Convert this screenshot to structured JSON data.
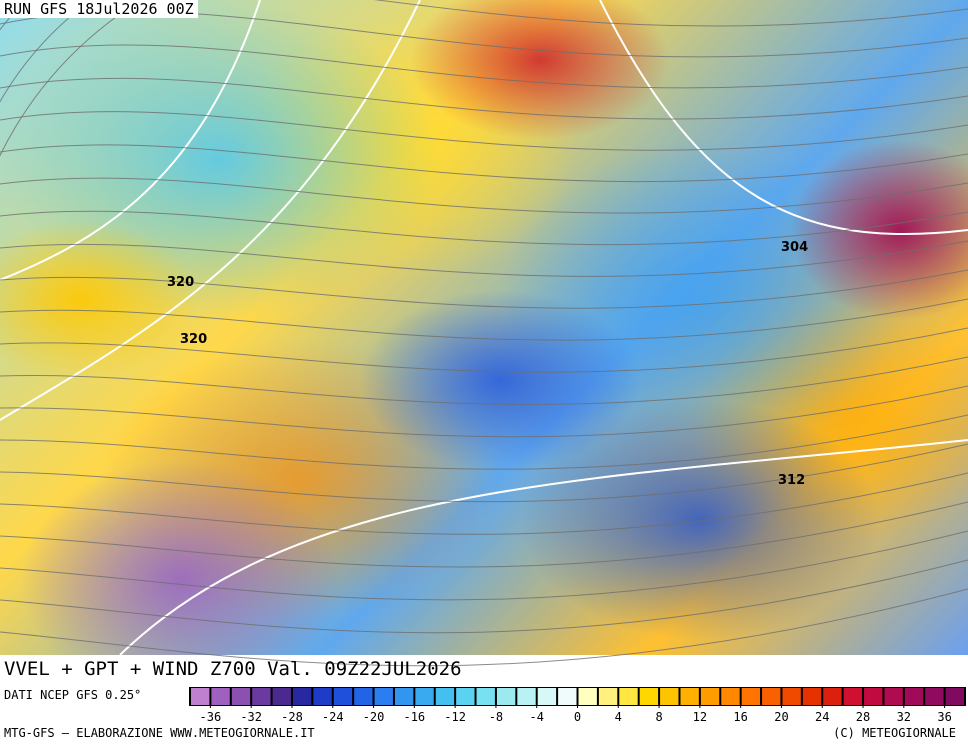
{
  "header": {
    "run": "RUN GFS 18Jul2026 00Z"
  },
  "map": {
    "contour_labels": [
      320,
      320,
      304,
      312
    ]
  },
  "footer": {
    "title": "VVEL + GPT + WIND Z700 Val. 09Z22JUL2026",
    "source": "DATI NCEP GFS 0.25°",
    "credit": "MTG-GFS — ELABORAZIONE WWW.METEOGIORNALE.IT",
    "copyright": "(C) METEOGIORNALE"
  },
  "colorbar": {
    "lim": [
      -38,
      38
    ],
    "ticks": [
      -36,
      -32,
      -28,
      -24,
      -20,
      -16,
      -12,
      -8,
      -4,
      0,
      4,
      8,
      12,
      16,
      20,
      24,
      28,
      32,
      36
    ],
    "colors": [
      "#c080d0",
      "#a060c0",
      "#8c50b0",
      "#6a3aa0",
      "#4b2a90",
      "#2828a0",
      "#1e3cc8",
      "#1e50dc",
      "#2264e6",
      "#2a7ef0",
      "#3296f0",
      "#3aaaf0",
      "#44c0f0",
      "#5ad2f0",
      "#78e0f0",
      "#9aeaf0",
      "#b8f2f4",
      "#d8f8f8",
      "#f0fcfc",
      "#ffffc0",
      "#fff080",
      "#ffe640",
      "#ffd700",
      "#ffc400",
      "#ffb000",
      "#ff9c00",
      "#ff8800",
      "#ff7400",
      "#f86000",
      "#f04a00",
      "#e63200",
      "#dc2010",
      "#d01030",
      "#c00a40",
      "#b00a50",
      "#a00a58",
      "#900a60",
      "#800a60"
    ]
  }
}
